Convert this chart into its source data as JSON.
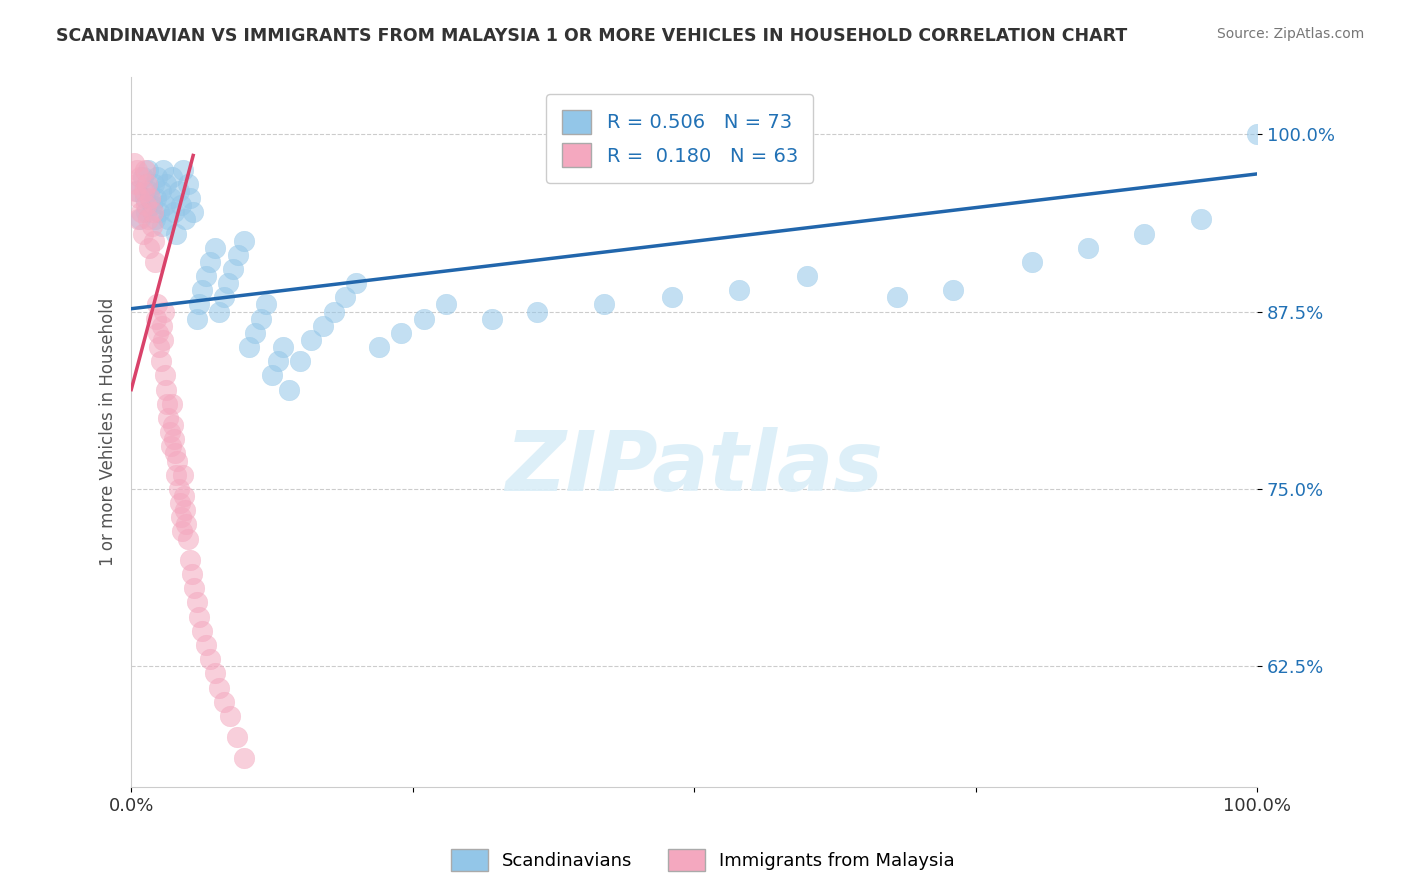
{
  "title": "SCANDINAVIAN VS IMMIGRANTS FROM MALAYSIA 1 OR MORE VEHICLES IN HOUSEHOLD CORRELATION CHART",
  "source": "Source: ZipAtlas.com",
  "ylabel": "1 or more Vehicles in Household",
  "xlim": [
    0.0,
    1.0
  ],
  "ylim": [
    0.54,
    1.04
  ],
  "yticks": [
    0.625,
    0.75,
    0.875,
    1.0
  ],
  "ytick_labels": [
    "62.5%",
    "75.0%",
    "87.5%",
    "100.0%"
  ],
  "r_blue": 0.506,
  "n_blue": 73,
  "r_pink": 0.18,
  "n_pink": 63,
  "blue_color": "#93c6e8",
  "pink_color": "#f4a8bf",
  "blue_line_color": "#2166ac",
  "pink_line_color": "#d9426a",
  "background_color": "#ffffff",
  "watermark_color": "#daeef8",
  "blue_scatter_x": [
    0.005,
    0.008,
    0.01,
    0.012,
    0.013,
    0.015,
    0.016,
    0.018,
    0.02,
    0.021,
    0.022,
    0.023,
    0.025,
    0.026,
    0.027,
    0.028,
    0.03,
    0.031,
    0.033,
    0.035,
    0.036,
    0.038,
    0.04,
    0.042,
    0.044,
    0.046,
    0.048,
    0.05,
    0.052,
    0.055,
    0.058,
    0.06,
    0.063,
    0.066,
    0.07,
    0.074,
    0.078,
    0.082,
    0.086,
    0.09,
    0.095,
    0.1,
    0.105,
    0.11,
    0.115,
    0.12,
    0.125,
    0.13,
    0.135,
    0.14,
    0.15,
    0.16,
    0.17,
    0.18,
    0.19,
    0.2,
    0.22,
    0.24,
    0.26,
    0.28,
    0.32,
    0.36,
    0.42,
    0.48,
    0.54,
    0.6,
    0.68,
    0.73,
    0.8,
    0.85,
    0.9,
    0.95,
    1.0
  ],
  "blue_scatter_y": [
    0.96,
    0.94,
    0.97,
    0.955,
    0.945,
    0.975,
    0.96,
    0.95,
    0.965,
    0.94,
    0.955,
    0.97,
    0.945,
    0.96,
    0.935,
    0.975,
    0.95,
    0.965,
    0.94,
    0.955,
    0.97,
    0.945,
    0.93,
    0.96,
    0.95,
    0.975,
    0.94,
    0.965,
    0.955,
    0.945,
    0.87,
    0.88,
    0.89,
    0.9,
    0.91,
    0.92,
    0.875,
    0.885,
    0.895,
    0.905,
    0.915,
    0.925,
    0.85,
    0.86,
    0.87,
    0.88,
    0.83,
    0.84,
    0.85,
    0.82,
    0.84,
    0.855,
    0.865,
    0.875,
    0.885,
    0.895,
    0.85,
    0.86,
    0.87,
    0.88,
    0.87,
    0.875,
    0.88,
    0.885,
    0.89,
    0.9,
    0.885,
    0.89,
    0.91,
    0.92,
    0.93,
    0.94,
    1.0
  ],
  "pink_scatter_x": [
    0.002,
    0.003,
    0.004,
    0.005,
    0.006,
    0.007,
    0.008,
    0.009,
    0.01,
    0.011,
    0.012,
    0.013,
    0.014,
    0.015,
    0.016,
    0.017,
    0.018,
    0.019,
    0.02,
    0.021,
    0.022,
    0.023,
    0.024,
    0.025,
    0.026,
    0.027,
    0.028,
    0.029,
    0.03,
    0.031,
    0.032,
    0.033,
    0.034,
    0.035,
    0.036,
    0.037,
    0.038,
    0.039,
    0.04,
    0.041,
    0.042,
    0.043,
    0.044,
    0.045,
    0.046,
    0.047,
    0.048,
    0.049,
    0.05,
    0.052,
    0.054,
    0.056,
    0.058,
    0.06,
    0.063,
    0.066,
    0.07,
    0.074,
    0.078,
    0.082,
    0.088,
    0.094,
    0.1
  ],
  "pink_scatter_y": [
    0.98,
    0.96,
    0.965,
    0.975,
    0.94,
    0.955,
    0.97,
    0.945,
    0.93,
    0.96,
    0.975,
    0.95,
    0.965,
    0.94,
    0.92,
    0.955,
    0.935,
    0.945,
    0.925,
    0.91,
    0.87,
    0.88,
    0.86,
    0.85,
    0.84,
    0.865,
    0.855,
    0.875,
    0.83,
    0.82,
    0.81,
    0.8,
    0.79,
    0.78,
    0.81,
    0.795,
    0.785,
    0.775,
    0.76,
    0.77,
    0.75,
    0.74,
    0.73,
    0.72,
    0.76,
    0.745,
    0.735,
    0.725,
    0.715,
    0.7,
    0.69,
    0.68,
    0.67,
    0.66,
    0.65,
    0.64,
    0.63,
    0.62,
    0.61,
    0.6,
    0.59,
    0.575,
    0.56
  ]
}
